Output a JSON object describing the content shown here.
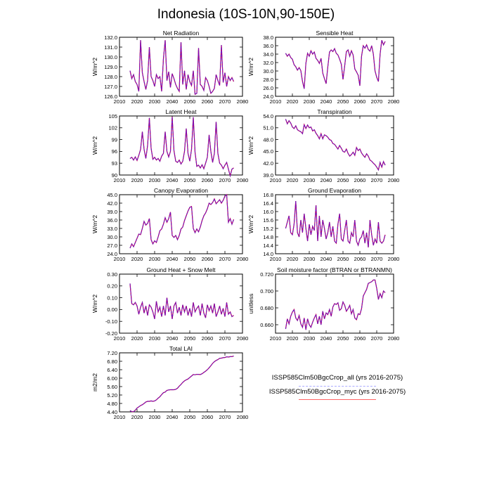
{
  "title": "Indonesia (10S-10N,90-150E)",
  "colors": {
    "all": "#6a5acd",
    "myc": "#ff0000",
    "mix": "#7a00b8"
  },
  "legend": [
    {
      "label": "ISSP585Clm50BgcCrop_all (yrs 2016-2075)",
      "color": "#aaaaff",
      "style": "dashed"
    },
    {
      "label": "ISSP585Clm50BgcCrop_myc (yrs 2016-2075)",
      "color": "#ff6666",
      "style": "solid"
    }
  ],
  "chart_data": [
    {
      "type": "line",
      "title": "Net Radiation",
      "ylabel": "W/m^2",
      "xlim": [
        2010,
        2080
      ],
      "ylim": [
        126.0,
        132.0
      ],
      "xticks": [
        2010,
        2020,
        2030,
        2040,
        2050,
        2060,
        2070,
        2080
      ],
      "yticks": [
        126.0,
        127.0,
        128.0,
        129.0,
        130.0,
        131.0,
        132.0
      ],
      "ytick_labels": [
        "126.0",
        "127.0",
        "128.0",
        "129.0",
        "130.0",
        "131.0",
        "132.0"
      ],
      "x_start": 2016,
      "series": [
        {
          "values": [
            128.6,
            127.8,
            128.2,
            127.5,
            127.2,
            126.5,
            131.7,
            128.4,
            127.5,
            126.7,
            127.6,
            131.0,
            128.0,
            127.6,
            127.0,
            128.2,
            127.8,
            128.0,
            126.5,
            129.8,
            131.7,
            127.6,
            128.5,
            126.9,
            128.3,
            127.8,
            127.2,
            126.8,
            126.5,
            131.5,
            127.2,
            128.6,
            126.7,
            128.2,
            127.5,
            127.1,
            128.6,
            126.2,
            126.3,
            130.9,
            127.2,
            127.0,
            126.6,
            127.9,
            127.6,
            127.0,
            126.3,
            126.5,
            126.8,
            128.2,
            127.6,
            127.1,
            131.2,
            127.4,
            128.4,
            127.0,
            128.0,
            127.6,
            127.9,
            127.5
          ]
        }
      ]
    },
    {
      "type": "line",
      "title": "Sensible Heat",
      "ylabel": "W/m^2",
      "xlim": [
        2010,
        2080
      ],
      "ylim": [
        24.0,
        38.0
      ],
      "xticks": [
        2010,
        2020,
        2030,
        2040,
        2050,
        2060,
        2070,
        2080
      ],
      "yticks": [
        24.0,
        26.0,
        28.0,
        30.0,
        32.0,
        34.0,
        36.0,
        38.0
      ],
      "ytick_labels": [
        "24.0",
        "26.0",
        "28.0",
        "30.0",
        "32.0",
        "34.0",
        "36.0",
        "38.0"
      ],
      "x_start": 2016,
      "series": [
        {
          "values": [
            34.2,
            33.5,
            34.0,
            33.2,
            32.8,
            31.5,
            31.0,
            30.2,
            30.8,
            30.1,
            27.5,
            25.8,
            31.8,
            34.2,
            33.5,
            34.8,
            34.0,
            34.5,
            33.0,
            32.5,
            31.8,
            33.0,
            29.5,
            28.2,
            27.0,
            31.0,
            34.5,
            35.0,
            34.6,
            35.3,
            34.2,
            33.8,
            32.8,
            31.6,
            28.0,
            31.2,
            34.6,
            35.0,
            33.5,
            34.8,
            33.8,
            30.5,
            29.8,
            29.0,
            26.5,
            33.5,
            36.0,
            35.4,
            36.2,
            35.1,
            34.7,
            36.0,
            34.0,
            30.0,
            28.5,
            27.5,
            34.0,
            37.3,
            36.2,
            37.0
          ]
        }
      ]
    },
    {
      "type": "line",
      "title": "Latent Heat",
      "ylabel": "W/m^2",
      "xlim": [
        2010,
        2080
      ],
      "ylim": [
        90,
        105
      ],
      "xticks": [
        2010,
        2020,
        2030,
        2040,
        2050,
        2060,
        2070,
        2080
      ],
      "yticks": [
        90,
        93,
        96,
        99,
        102,
        105
      ],
      "ytick_labels": [
        "90",
        "93",
        "96",
        "99",
        "102",
        "105"
      ],
      "x_start": 2016,
      "series": [
        {
          "values": [
            94.2,
            94.5,
            93.8,
            94.6,
            93.7,
            95.0,
            96.5,
            101.0,
            96.5,
            94.2,
            97.5,
            104.5,
            96.8,
            94.0,
            94.5,
            93.8,
            94.2,
            93.5,
            94.8,
            95.5,
            101.0,
            96.0,
            94.6,
            96.0,
            104.8,
            96.2,
            93.5,
            93.2,
            93.8,
            92.8,
            93.5,
            96.0,
            101.8,
            95.5,
            93.5,
            96.5,
            104.7,
            95.8,
            92.2,
            92.5,
            91.8,
            92.6,
            91.6,
            93.0,
            94.5,
            100.2,
            96.0,
            93.2,
            95.5,
            103.5,
            95.5,
            93.0,
            92.5,
            91.6,
            92.5,
            93.2,
            91.5,
            89.8,
            91.5,
            91.8
          ]
        }
      ]
    },
    {
      "type": "line",
      "title": "Transpiration",
      "ylabel": "W/m^2",
      "xlim": [
        2010,
        2080
      ],
      "ylim": [
        39.0,
        54.0
      ],
      "xticks": [
        2010,
        2020,
        2030,
        2040,
        2050,
        2060,
        2070,
        2080
      ],
      "yticks": [
        39.0,
        42.0,
        45.0,
        48.0,
        51.0,
        54.0
      ],
      "ytick_labels": [
        "39.0",
        "42.0",
        "45.0",
        "48.0",
        "51.0",
        "54.0"
      ],
      "x_start": 2016,
      "series": [
        {
          "values": [
            53.2,
            52.0,
            52.8,
            52.2,
            51.2,
            50.8,
            51.5,
            50.5,
            50.2,
            50.0,
            49.5,
            51.8,
            50.8,
            51.7,
            51.0,
            51.2,
            50.2,
            50.5,
            49.6,
            49.0,
            48.2,
            49.5,
            48.2,
            49.2,
            49.0,
            48.6,
            48.0,
            47.8,
            47.0,
            46.8,
            46.2,
            45.6,
            46.5,
            45.8,
            45.0,
            44.8,
            45.6,
            44.5,
            43.8,
            44.2,
            44.8,
            44.0,
            46.0,
            45.2,
            45.6,
            44.6,
            44.0,
            43.5,
            44.4,
            43.8,
            42.8,
            42.5,
            42.0,
            41.6,
            41.0,
            40.3,
            42.2,
            41.0,
            42.4,
            41.5
          ]
        }
      ]
    },
    {
      "type": "line",
      "title": "Canopy Evaporation",
      "ylabel": "W/m^2",
      "xlim": [
        2010,
        2080
      ],
      "ylim": [
        24.0,
        45.0
      ],
      "xticks": [
        2010,
        2020,
        2030,
        2040,
        2050,
        2060,
        2070,
        2080
      ],
      "yticks": [
        24.0,
        27.0,
        30.0,
        33.0,
        36.0,
        39.0,
        42.0,
        45.0
      ],
      "ytick_labels": [
        "24.0",
        "27.0",
        "30.0",
        "33.0",
        "36.0",
        "39.0",
        "42.0",
        "45.0"
      ],
      "x_start": 2016,
      "series": [
        {
          "values": [
            26.0,
            27.5,
            26.5,
            28.0,
            29.5,
            31.0,
            30.8,
            33.0,
            35.5,
            34.2,
            34.8,
            36.5,
            29.0,
            27.5,
            28.6,
            28.0,
            30.0,
            32.2,
            32.8,
            34.5,
            36.8,
            35.2,
            36.5,
            38.8,
            30.5,
            29.8,
            30.5,
            29.0,
            30.5,
            32.8,
            33.5,
            35.8,
            37.5,
            39.2,
            40.5,
            40.8,
            33.0,
            31.5,
            32.8,
            31.8,
            33.5,
            35.8,
            37.5,
            38.5,
            40.0,
            42.0,
            41.5,
            42.2,
            43.5,
            41.8,
            42.5,
            43.2,
            42.0,
            43.0,
            44.5,
            45.0,
            35.2,
            36.5,
            34.5,
            36.2
          ]
        }
      ]
    },
    {
      "type": "line",
      "title": "Ground Evaporation",
      "ylabel": "W/m^2",
      "xlim": [
        2010,
        2080
      ],
      "ylim": [
        14.0,
        16.8
      ],
      "xticks": [
        2010,
        2020,
        2030,
        2040,
        2050,
        2060,
        2070,
        2080
      ],
      "yticks": [
        14.0,
        14.4,
        14.8,
        15.2,
        15.6,
        16.0,
        16.4,
        16.8
      ],
      "ytick_labels": [
        "14.0",
        "14.4",
        "14.8",
        "15.2",
        "15.6",
        "16.0",
        "16.4",
        "16.8"
      ],
      "x_start": 2016,
      "series": [
        {
          "values": [
            15.2,
            15.5,
            15.8,
            15.0,
            14.9,
            15.4,
            16.5,
            15.0,
            14.8,
            15.6,
            15.0,
            15.9,
            15.2,
            14.6,
            15.4,
            14.9,
            15.3,
            15.1,
            16.3,
            14.6,
            15.8,
            14.8,
            15.6,
            15.2,
            14.7,
            15.0,
            15.5,
            14.8,
            15.3,
            14.6,
            14.5,
            15.4,
            15.9,
            14.7,
            14.6,
            15.1,
            15.6,
            14.6,
            14.5,
            15.0,
            14.8,
            15.6,
            14.6,
            14.4,
            14.7,
            14.8,
            15.1,
            14.5,
            15.0,
            14.3,
            15.6,
            14.9,
            14.4,
            14.7,
            14.5,
            15.5,
            14.6,
            14.5,
            14.6,
            14.9
          ]
        }
      ]
    },
    {
      "type": "line",
      "title": "Ground Heat + Snow Melt",
      "ylabel": "W/m^2",
      "xlim": [
        2010,
        2080
      ],
      "ylim": [
        -0.2,
        0.3
      ],
      "xticks": [
        2010,
        2020,
        2030,
        2040,
        2050,
        2060,
        2070,
        2080
      ],
      "yticks": [
        -0.2,
        -0.1,
        0.0,
        0.1,
        0.2,
        0.3
      ],
      "ytick_labels": [
        "-0.20",
        "-0.10",
        "0.00",
        "0.10",
        "0.20",
        "0.30"
      ],
      "x_start": 2016,
      "series": [
        {
          "values": [
            0.22,
            0.05,
            0.04,
            0.06,
            0.03,
            -0.04,
            0.02,
            0.06,
            -0.03,
            0.03,
            -0.05,
            0.04,
            0.02,
            -0.02,
            -0.08,
            0.07,
            -0.02,
            0.02,
            -0.06,
            0.03,
            -0.05,
            0.1,
            -0.02,
            0.03,
            -0.08,
            0.03,
            0.06,
            -0.03,
            0.02,
            -0.05,
            0.04,
            -0.02,
            0.03,
            -0.05,
            0.01,
            -0.06,
            0.06,
            -0.02,
            0.01,
            0.03,
            -0.05,
            0.05,
            -0.03,
            -0.07,
            0.04,
            -0.01,
            0.03,
            -0.03,
            0.05,
            -0.06,
            -0.02,
            0.03,
            -0.04,
            0.01,
            -0.06,
            0.06,
            -0.04,
            -0.02,
            -0.06,
            -0.05
          ]
        }
      ]
    },
    {
      "type": "line",
      "title": "Soil moisture factor (BTRAN or BTRANMN)",
      "ylabel": "unitless",
      "xlim": [
        2010,
        2080
      ],
      "ylim": [
        0.65,
        0.72
      ],
      "xticks": [
        2010,
        2020,
        2030,
        2040,
        2050,
        2060,
        2070,
        2080
      ],
      "yticks": [
        0.66,
        0.68,
        0.7,
        0.72
      ],
      "ytick_labels": [
        "0.660",
        "0.680",
        "0.700",
        "0.720"
      ],
      "x_start": 2016,
      "series": [
        {
          "values": [
            0.655,
            0.667,
            0.661,
            0.67,
            0.675,
            0.678,
            0.668,
            0.665,
            0.671,
            0.661,
            0.657,
            0.668,
            0.654,
            0.667,
            0.66,
            0.657,
            0.663,
            0.668,
            0.672,
            0.661,
            0.67,
            0.66,
            0.676,
            0.667,
            0.674,
            0.672,
            0.678,
            0.67,
            0.681,
            0.685,
            0.684,
            0.686,
            0.677,
            0.679,
            0.687,
            0.683,
            0.676,
            0.679,
            0.683,
            0.673,
            0.678,
            0.668,
            0.666,
            0.673,
            0.672,
            0.679,
            0.694,
            0.698,
            0.702,
            0.709,
            0.71,
            0.711,
            0.713,
            0.713,
            0.703,
            0.69,
            0.697,
            0.692,
            0.7,
            0.698
          ]
        }
      ]
    },
    {
      "type": "line",
      "title": "Total LAI",
      "ylabel": "m2/m2",
      "xlim": [
        2010,
        2080
      ],
      "ylim": [
        4.4,
        7.2
      ],
      "xticks": [
        2010,
        2020,
        2030,
        2040,
        2050,
        2060,
        2070,
        2080
      ],
      "yticks": [
        4.4,
        4.8,
        5.2,
        5.6,
        6.0,
        6.4,
        6.8,
        7.2
      ],
      "ytick_labels": [
        "4.40",
        "4.80",
        "5.20",
        "5.60",
        "6.00",
        "6.40",
        "6.80",
        "7.20"
      ],
      "x_start": 2016,
      "series": [
        {
          "values": [
            4.46,
            4.41,
            4.41,
            4.48,
            4.58,
            4.64,
            4.7,
            4.74,
            4.8,
            4.87,
            4.9,
            4.9,
            4.92,
            4.9,
            4.92,
            4.97,
            5.05,
            5.12,
            5.22,
            5.31,
            5.34,
            5.42,
            5.44,
            5.45,
            5.45,
            5.45,
            5.47,
            5.52,
            5.62,
            5.7,
            5.8,
            5.87,
            5.92,
            5.96,
            6.03,
            6.1,
            6.17,
            6.16,
            6.18,
            6.18,
            6.17,
            6.21,
            6.27,
            6.33,
            6.4,
            6.49,
            6.59,
            6.7,
            6.78,
            6.84,
            6.88,
            6.94,
            6.95,
            6.97,
            6.98,
            7.01,
            7.0,
            7.02,
            7.02,
            7.05
          ]
        }
      ]
    }
  ]
}
